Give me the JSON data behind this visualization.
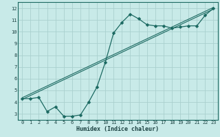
{
  "xlabel": "Humidex (Indice chaleur)",
  "bg_color": "#c8eae8",
  "grid_color": "#aad0ce",
  "line_color": "#1a6860",
  "xlim": [
    -0.5,
    23.5
  ],
  "ylim": [
    2.5,
    12.5
  ],
  "xticks": [
    0,
    1,
    2,
    3,
    4,
    5,
    6,
    7,
    8,
    9,
    10,
    11,
    12,
    13,
    14,
    15,
    16,
    17,
    18,
    19,
    20,
    21,
    22,
    23
  ],
  "yticks": [
    3,
    4,
    5,
    6,
    7,
    8,
    9,
    10,
    11,
    12
  ],
  "curve1_x": [
    0,
    1,
    2,
    3,
    4,
    5,
    6,
    7,
    8,
    9,
    10,
    11,
    12,
    13,
    14,
    15,
    16,
    17,
    18,
    19,
    20,
    21,
    22,
    23
  ],
  "curve1_y": [
    4.3,
    4.3,
    4.4,
    3.2,
    3.6,
    2.8,
    2.8,
    2.9,
    4.0,
    5.3,
    7.4,
    9.9,
    10.8,
    11.5,
    11.1,
    10.6,
    10.5,
    10.5,
    10.3,
    10.4,
    10.5,
    10.5,
    11.4,
    12.0
  ],
  "curve2_x": [
    0,
    23
  ],
  "curve2_y": [
    4.3,
    12.0
  ],
  "marker_size": 2.5,
  "tick_fontsize": 5.0,
  "xlabel_fontsize": 6.0
}
